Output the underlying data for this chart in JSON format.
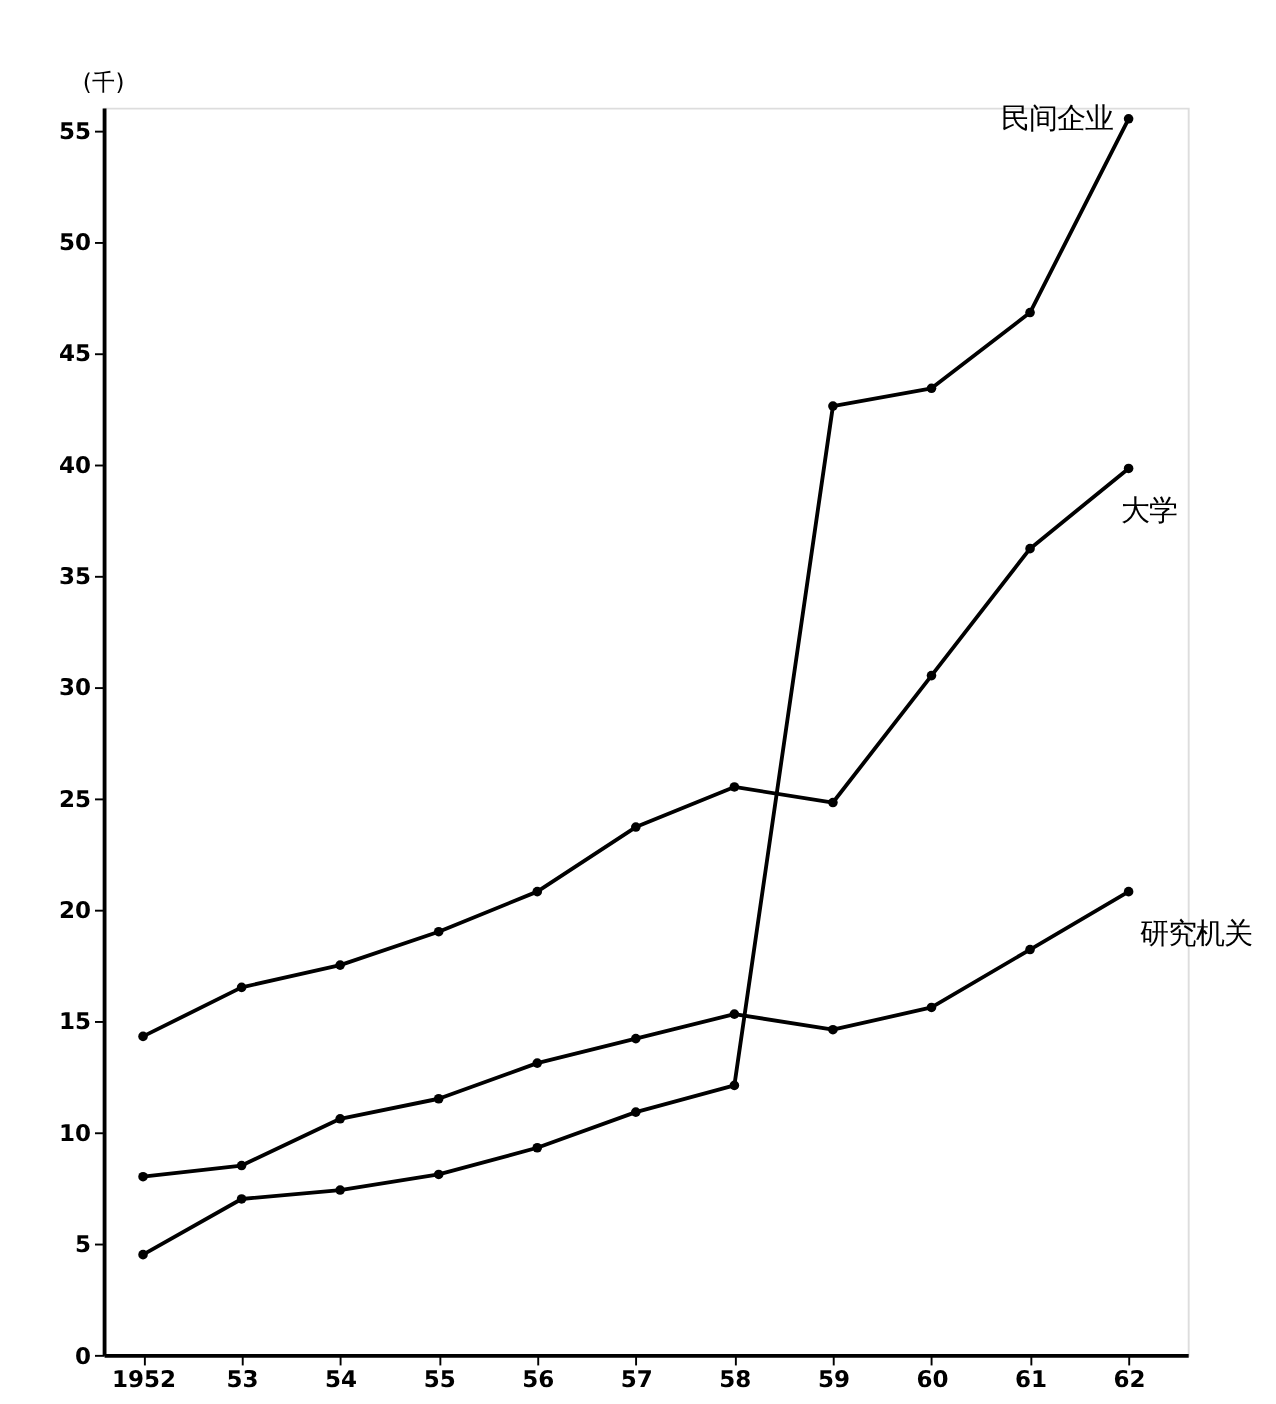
{
  "chart_data": {
    "type": "line",
    "ylabel": "(千)",
    "categories": [
      "1952",
      "53",
      "54",
      "55",
      "56",
      "57",
      "58",
      "59",
      "60",
      "61",
      "62"
    ],
    "series": [
      {
        "name": "民间企业",
        "color": "#000000",
        "values": [
          4.5,
          7,
          7.4,
          8.1,
          9.3,
          10.9,
          12.1,
          42.6,
          43.4,
          46.8,
          55.5
        ]
      },
      {
        "name": "大学",
        "color": "#000000",
        "values": [
          14.3,
          16.5,
          17.5,
          19,
          20.8,
          23.7,
          25.5,
          24.8,
          30.5,
          36.2,
          39.8
        ]
      },
      {
        "name": "研究机关",
        "color": "#000000",
        "values": [
          8,
          8.5,
          10.6,
          11.5,
          13.1,
          14.2,
          15.3,
          14.6,
          15.6,
          18.2,
          20.8
        ]
      }
    ],
    "ylim": [
      0,
      56
    ],
    "yticks": [
      0,
      5,
      10,
      15,
      20,
      25,
      30,
      35,
      40,
      45,
      50,
      55
    ],
    "grid": false,
    "legend": false,
    "marker": "circle",
    "line_style": "solid"
  }
}
